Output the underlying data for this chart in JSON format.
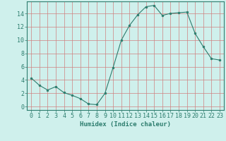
{
  "x": [
    0,
    1,
    2,
    3,
    4,
    5,
    6,
    7,
    8,
    9,
    10,
    11,
    12,
    13,
    14,
    15,
    16,
    17,
    18,
    19,
    20,
    21,
    22,
    23
  ],
  "y": [
    4.3,
    3.2,
    2.5,
    3.0,
    2.1,
    1.7,
    1.2,
    0.4,
    0.3,
    2.0,
    5.9,
    10.0,
    12.2,
    13.8,
    15.0,
    15.2,
    13.7,
    14.0,
    14.1,
    14.2,
    11.0,
    9.0,
    7.2,
    7.0
  ],
  "line_color": "#2d7d6e",
  "marker": "o",
  "marker_size": 2.0,
  "bg_color": "#cff0ec",
  "grid_color": "#d08080",
  "axis_color": "#2d7d6e",
  "xlabel": "Humidex (Indice chaleur)",
  "xlabel_fontsize": 6.5,
  "tick_fontsize": 6,
  "xlim": [
    -0.5,
    23.5
  ],
  "ylim": [
    -0.5,
    15.8
  ],
  "yticks": [
    0,
    2,
    4,
    6,
    8,
    10,
    12,
    14
  ],
  "xticks": [
    0,
    1,
    2,
    3,
    4,
    5,
    6,
    7,
    8,
    9,
    10,
    11,
    12,
    13,
    14,
    15,
    16,
    17,
    18,
    19,
    20,
    21,
    22,
    23
  ]
}
